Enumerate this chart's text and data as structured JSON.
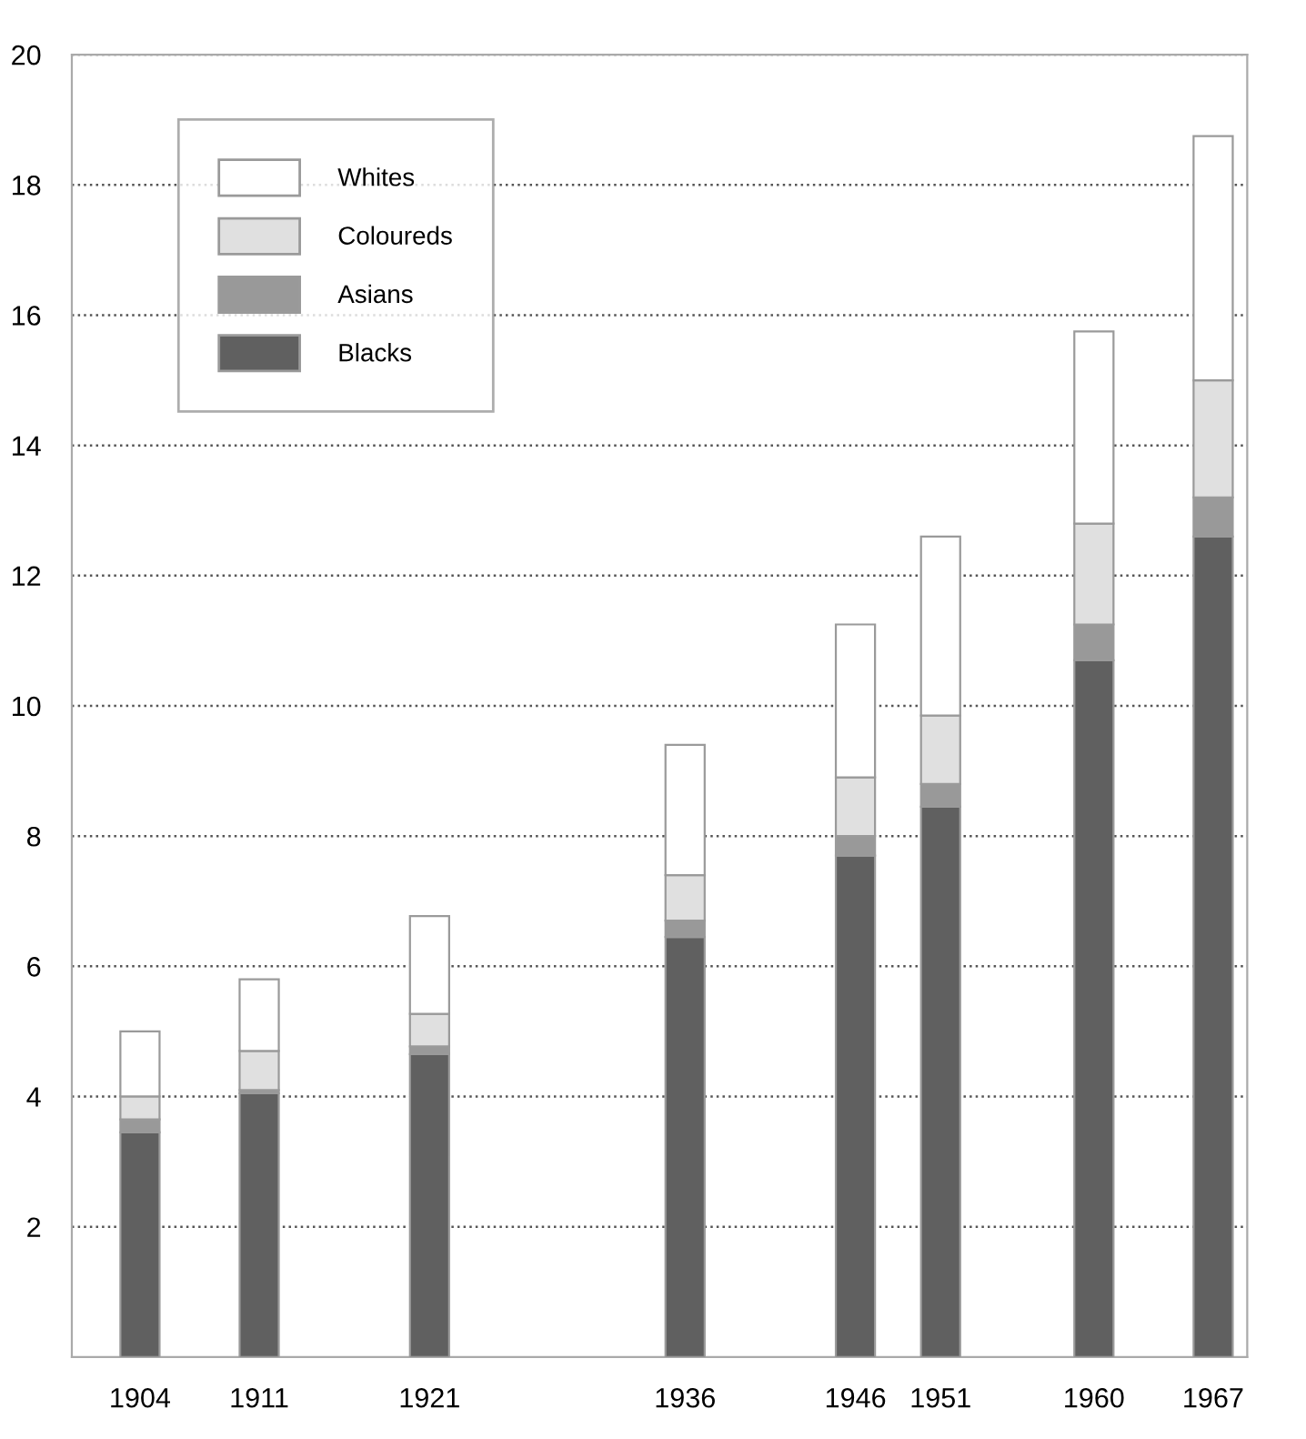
{
  "chart_data": {
    "type": "bar",
    "stacked": true,
    "x": [
      1904,
      1911,
      1921,
      1936,
      1946,
      1951,
      1960,
      1967
    ],
    "series": [
      {
        "name": "Blacks",
        "color": "#606060",
        "values": [
          3.45,
          4.05,
          4.65,
          6.45,
          7.7,
          8.45,
          10.7,
          12.6
        ]
      },
      {
        "name": "Asians",
        "color": "#999999",
        "values": [
          0.2,
          0.05,
          0.12,
          0.25,
          0.3,
          0.35,
          0.55,
          0.6
        ]
      },
      {
        "name": "Coloureds",
        "color": "#e0e0e0",
        "values": [
          0.35,
          0.6,
          0.5,
          0.7,
          0.9,
          1.05,
          1.55,
          1.8
        ]
      },
      {
        "name": "Whites",
        "color": "#ffffff",
        "values": [
          1.0,
          1.1,
          1.5,
          2.0,
          2.35,
          2.75,
          2.95,
          3.75
        ]
      }
    ],
    "xlim": [
      1900,
      1969
    ],
    "xticks": [
      1904,
      1911,
      1921,
      1936,
      1946,
      1951,
      1960,
      1967
    ],
    "ylim": [
      0,
      20
    ],
    "yticks": [
      2,
      4,
      6,
      8,
      10,
      12,
      14,
      16,
      18,
      20
    ],
    "grid": "y",
    "legend": "top left"
  }
}
